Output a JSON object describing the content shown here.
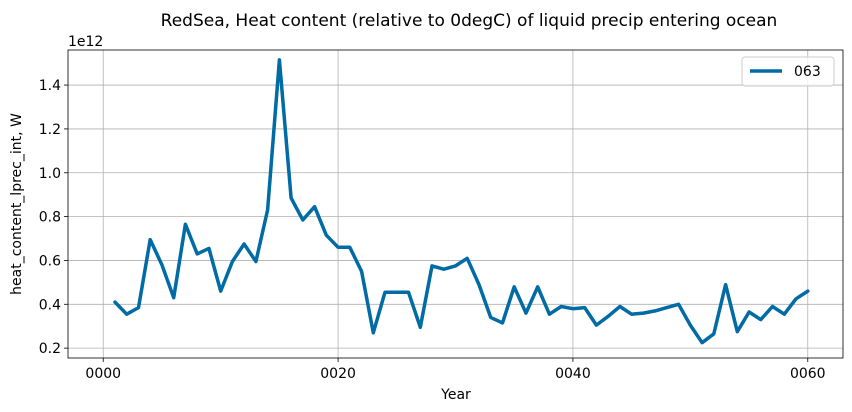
{
  "chart_data": {
    "type": "line",
    "title": "RedSea, Heat content (relative to 0degC) of liquid precip entering ocean",
    "xlabel": "Year",
    "ylabel": "heat_content_lprec_int, W",
    "y_scale_label": "1e12",
    "xlim": [
      -3,
      63
    ],
    "ylim": [
      0.155,
      1.56
    ],
    "x_ticks": [
      0,
      20,
      40,
      60
    ],
    "x_tick_labels": [
      "0000",
      "0020",
      "0040",
      "0060"
    ],
    "y_ticks": [
      0.2,
      0.4,
      0.6,
      0.8,
      1.0,
      1.2,
      1.4
    ],
    "y_tick_labels": [
      "0.2",
      "0.4",
      "0.6",
      "0.8",
      "1.0",
      "1.2",
      "1.4"
    ],
    "grid": true,
    "legend_position": "top-right",
    "series": [
      {
        "name": "063",
        "color": "#006ba4",
        "x": [
          1,
          2,
          3,
          4,
          5,
          6,
          7,
          8,
          9,
          10,
          11,
          12,
          13,
          14,
          15,
          16,
          17,
          18,
          19,
          20,
          21,
          22,
          23,
          24,
          25,
          26,
          27,
          28,
          29,
          30,
          31,
          32,
          33,
          34,
          35,
          36,
          37,
          38,
          39,
          40,
          41,
          42,
          43,
          44,
          45,
          46,
          47,
          48,
          49,
          50,
          51,
          52,
          53,
          54,
          55,
          56,
          57,
          58,
          59,
          60
        ],
        "values": [
          0.41,
          0.355,
          0.385,
          0.695,
          0.58,
          0.43,
          0.765,
          0.63,
          0.655,
          0.46,
          0.595,
          0.675,
          0.595,
          0.83,
          1.515,
          0.885,
          0.785,
          0.845,
          0.715,
          0.66,
          0.66,
          0.55,
          0.27,
          0.455,
          0.455,
          0.455,
          0.295,
          0.575,
          0.56,
          0.575,
          0.61,
          0.49,
          0.34,
          0.315,
          0.48,
          0.36,
          0.48,
          0.355,
          0.39,
          0.38,
          0.385,
          0.305,
          0.345,
          0.39,
          0.355,
          0.36,
          0.37,
          0.385,
          0.4,
          0.305,
          0.225,
          0.265,
          0.49,
          0.275,
          0.365,
          0.33,
          0.39,
          0.355,
          0.425,
          0.46
        ]
      }
    ]
  }
}
